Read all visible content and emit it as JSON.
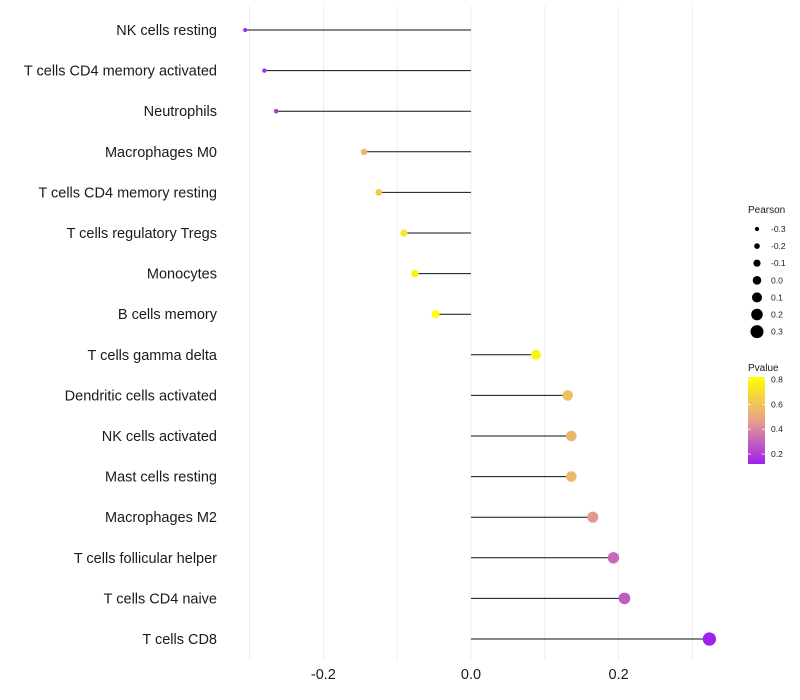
{
  "chart_data": {
    "type": "lollipop",
    "categories": [
      "NK cells resting",
      "T cells CD4 memory activated",
      "Neutrophils",
      "Macrophages M0",
      "T cells CD4 memory resting",
      "T cells regulatory  Tregs ",
      "Monocytes",
      "B cells memory",
      "T cells gamma delta",
      "Dendritic cells activated",
      "NK cells activated",
      "Mast cells resting",
      "Macrophages M2",
      "T cells follicular helper",
      "T cells CD4 naive",
      "T cells CD8"
    ],
    "values": [
      -0.306,
      -0.28,
      -0.264,
      -0.145,
      -0.125,
      -0.091,
      -0.076,
      -0.048,
      0.088,
      0.131,
      0.136,
      0.136,
      0.165,
      0.193,
      0.208,
      0.323
    ],
    "pvalues": [
      0.15,
      0.17,
      0.2,
      0.55,
      0.62,
      0.72,
      0.78,
      0.88,
      0.78,
      0.58,
      0.56,
      0.55,
      0.45,
      0.32,
      0.28,
      0.12
    ],
    "xlabel": "",
    "ylabel": "",
    "xlim": [
      -0.33,
      0.35
    ],
    "xticks": [
      -0.2,
      0.0,
      0.2
    ],
    "xtick_labels": [
      "-0.2",
      "0.0",
      "0.2"
    ],
    "grid": true,
    "legend_size": {
      "title": "Pearson",
      "values": [
        -0.3,
        -0.2,
        -0.1,
        0.0,
        0.1,
        0.2,
        0.3
      ],
      "labels": [
        "-0.3",
        "-0.2",
        "-0.1",
        "0.0",
        "0.1",
        "0.2",
        "0.3"
      ]
    },
    "legend_color": {
      "title": "Pvalue",
      "range": [
        0.12,
        0.82
      ],
      "ticks": [
        0.8,
        0.6,
        0.4,
        0.2
      ],
      "labels": [
        "0.8",
        "0.6",
        "0.4",
        "0.2"
      ],
      "low_color": "#a020f0",
      "mid_color": "#e6a08c",
      "high_color": "#ffff00"
    }
  }
}
